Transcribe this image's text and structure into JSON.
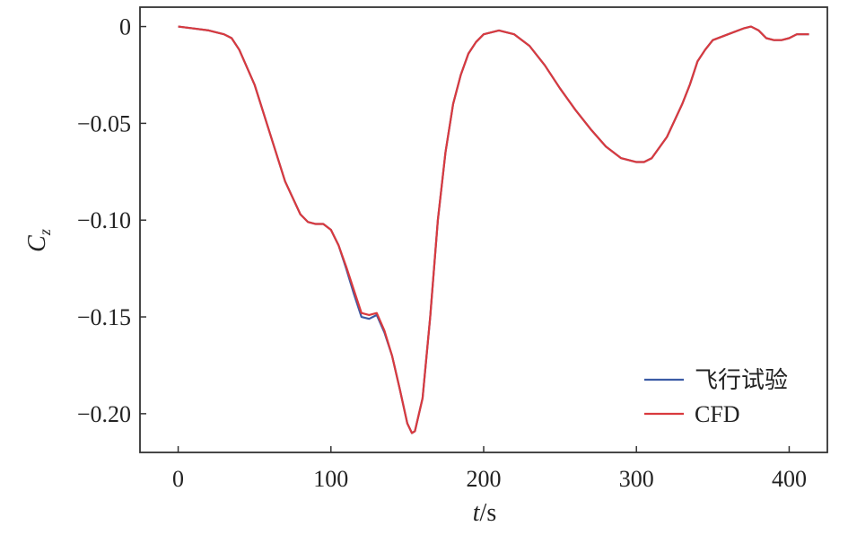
{
  "chart_data": {
    "type": "line",
    "title": "",
    "xlabel": {
      "var": "t",
      "unit": "/s"
    },
    "ylabel": {
      "var": "C",
      "sub": "z"
    },
    "xlim": [
      -25,
      425
    ],
    "ylim": [
      -0.22,
      0.01
    ],
    "x_ticks": [
      0,
      100,
      200,
      300,
      400
    ],
    "x_tick_labels": [
      "0",
      "100",
      "200",
      "300",
      "400"
    ],
    "y_ticks": [
      0,
      -0.05,
      -0.1,
      -0.15,
      -0.2
    ],
    "y_tick_labels": [
      "0",
      "−0.05",
      "−0.10",
      "−0.15",
      "−0.20"
    ],
    "grid": false,
    "legend_position": "bottom-right",
    "series": [
      {
        "name": "飞行试验",
        "color": "#3b5ba5",
        "points": [
          [
            0,
            0
          ],
          [
            10,
            -0.001
          ],
          [
            20,
            -0.002
          ],
          [
            30,
            -0.004
          ],
          [
            35,
            -0.006
          ],
          [
            40,
            -0.012
          ],
          [
            50,
            -0.03
          ],
          [
            60,
            -0.055
          ],
          [
            70,
            -0.08
          ],
          [
            80,
            -0.097
          ],
          [
            85,
            -0.101
          ],
          [
            90,
            -0.102
          ],
          [
            95,
            -0.102
          ],
          [
            100,
            -0.105
          ],
          [
            105,
            -0.113
          ],
          [
            110,
            -0.125
          ],
          [
            115,
            -0.138
          ],
          [
            120,
            -0.15
          ],
          [
            125,
            -0.151
          ],
          [
            130,
            -0.149
          ],
          [
            135,
            -0.158
          ],
          [
            140,
            -0.17
          ],
          [
            145,
            -0.187
          ],
          [
            150,
            -0.205
          ],
          [
            153,
            -0.21
          ],
          [
            155,
            -0.209
          ],
          [
            160,
            -0.192
          ],
          [
            165,
            -0.15
          ],
          [
            170,
            -0.1
          ],
          [
            175,
            -0.065
          ],
          [
            180,
            -0.04
          ],
          [
            185,
            -0.025
          ],
          [
            190,
            -0.014
          ],
          [
            195,
            -0.008
          ],
          [
            200,
            -0.004
          ],
          [
            210,
            -0.002
          ],
          [
            220,
            -0.004
          ],
          [
            230,
            -0.01
          ],
          [
            240,
            -0.02
          ],
          [
            250,
            -0.032
          ],
          [
            260,
            -0.043
          ],
          [
            270,
            -0.053
          ],
          [
            280,
            -0.062
          ],
          [
            290,
            -0.068
          ],
          [
            300,
            -0.07
          ],
          [
            305,
            -0.07
          ],
          [
            310,
            -0.068
          ],
          [
            320,
            -0.057
          ],
          [
            330,
            -0.04
          ],
          [
            335,
            -0.03
          ],
          [
            340,
            -0.018
          ],
          [
            345,
            -0.012
          ],
          [
            350,
            -0.007
          ],
          [
            360,
            -0.004
          ],
          [
            370,
            -0.001
          ],
          [
            375,
            0
          ],
          [
            380,
            -0.002
          ],
          [
            385,
            -0.006
          ],
          [
            390,
            -0.007
          ],
          [
            395,
            -0.007
          ],
          [
            400,
            -0.006
          ],
          [
            405,
            -0.004
          ],
          [
            410,
            -0.004
          ],
          [
            413,
            -0.004
          ]
        ]
      },
      {
        "name": "CFD",
        "color": "#d93a3e",
        "points": [
          [
            0,
            0
          ],
          [
            10,
            -0.001
          ],
          [
            20,
            -0.002
          ],
          [
            30,
            -0.004
          ],
          [
            35,
            -0.006
          ],
          [
            40,
            -0.012
          ],
          [
            50,
            -0.03
          ],
          [
            60,
            -0.055
          ],
          [
            70,
            -0.08
          ],
          [
            80,
            -0.097
          ],
          [
            85,
            -0.101
          ],
          [
            90,
            -0.102
          ],
          [
            95,
            -0.102
          ],
          [
            100,
            -0.105
          ],
          [
            105,
            -0.113
          ],
          [
            110,
            -0.124
          ],
          [
            115,
            -0.136
          ],
          [
            120,
            -0.148
          ],
          [
            125,
            -0.149
          ],
          [
            130,
            -0.148
          ],
          [
            135,
            -0.157
          ],
          [
            140,
            -0.17
          ],
          [
            145,
            -0.187
          ],
          [
            150,
            -0.205
          ],
          [
            153,
            -0.21
          ],
          [
            155,
            -0.209
          ],
          [
            160,
            -0.192
          ],
          [
            165,
            -0.15
          ],
          [
            170,
            -0.1
          ],
          [
            175,
            -0.065
          ],
          [
            180,
            -0.04
          ],
          [
            185,
            -0.025
          ],
          [
            190,
            -0.014
          ],
          [
            195,
            -0.008
          ],
          [
            200,
            -0.004
          ],
          [
            210,
            -0.002
          ],
          [
            220,
            -0.004
          ],
          [
            230,
            -0.01
          ],
          [
            240,
            -0.02
          ],
          [
            250,
            -0.032
          ],
          [
            260,
            -0.043
          ],
          [
            270,
            -0.053
          ],
          [
            280,
            -0.062
          ],
          [
            290,
            -0.068
          ],
          [
            300,
            -0.07
          ],
          [
            305,
            -0.07
          ],
          [
            310,
            -0.068
          ],
          [
            320,
            -0.057
          ],
          [
            330,
            -0.04
          ],
          [
            335,
            -0.03
          ],
          [
            340,
            -0.018
          ],
          [
            345,
            -0.012
          ],
          [
            350,
            -0.007
          ],
          [
            360,
            -0.004
          ],
          [
            370,
            -0.001
          ],
          [
            375,
            0
          ],
          [
            380,
            -0.002
          ],
          [
            385,
            -0.006
          ],
          [
            390,
            -0.007
          ],
          [
            395,
            -0.007
          ],
          [
            400,
            -0.006
          ],
          [
            405,
            -0.004
          ],
          [
            410,
            -0.004
          ],
          [
            413,
            -0.004
          ]
        ]
      }
    ]
  }
}
